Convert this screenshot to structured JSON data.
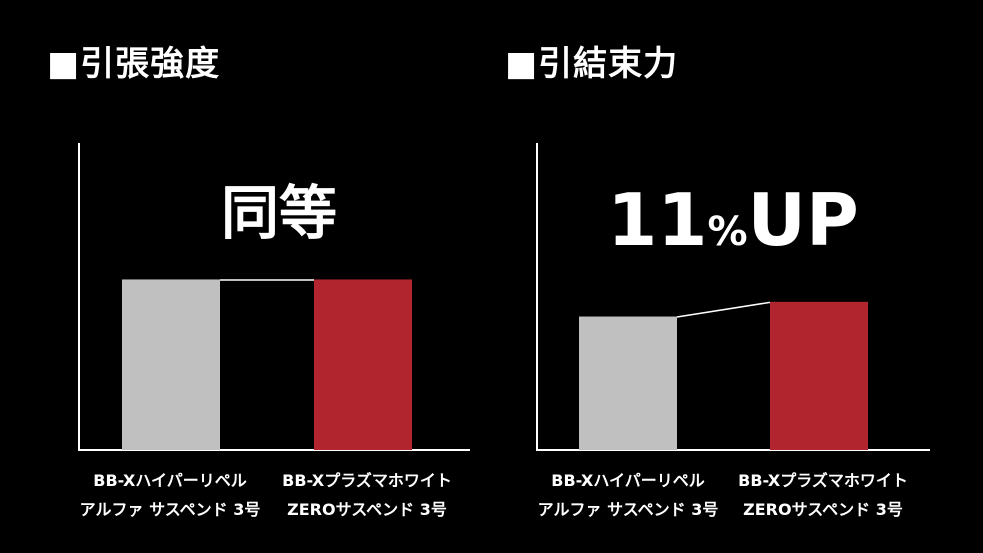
{
  "left_panel": {
    "title": "■引張強度"
  },
  "right_panel": {
    "title": "■引結束力"
  },
  "chart_data": [
    {
      "type": "bar",
      "title": "■引張強度",
      "annotation": "同等",
      "categories": [
        [
          "BB-Xハイパーリペル",
          "アルファ サスペンド 3号"
        ],
        [
          "BB-Xプラズマホワイト",
          "ZEROサスペンド 3号"
        ]
      ],
      "values": [
        100,
        100
      ],
      "ylim": [
        0,
        180
      ],
      "colors": [
        "#c0c0c0",
        "#b0252e"
      ],
      "grid": false,
      "connector": true
    },
    {
      "type": "bar",
      "title": "■引結束力",
      "annotation": "11%UP",
      "categories": [
        [
          "BB-Xハイパーリペル",
          "アルファ サスペンド 3号"
        ],
        [
          "BB-Xプラズマホワイト",
          "ZEROサスペンド 3号"
        ]
      ],
      "values": [
        100,
        111
      ],
      "ylim": [
        0,
        230
      ],
      "colors": [
        "#c0c0c0",
        "#b0252e"
      ],
      "grid": false,
      "connector": true
    }
  ]
}
